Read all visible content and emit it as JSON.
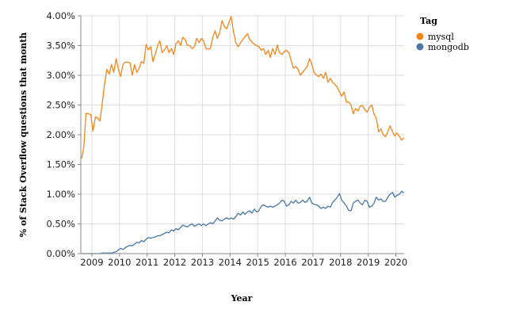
{
  "chart_data": {
    "type": "line",
    "xlabel": "Year",
    "ylabel": "% of Stack Overflow questions that month",
    "x_ticks": [
      "2009",
      "2010",
      "2011",
      "2012",
      "2013",
      "2014",
      "2015",
      "2016",
      "2017",
      "2018",
      "2019",
      "2020"
    ],
    "y_ticks": [
      "0.00%",
      "0.50%",
      "1.00%",
      "1.50%",
      "2.00%",
      "2.50%",
      "3.00%",
      "3.50%",
      "4.00%"
    ],
    "xlim": [
      2008.6,
      2020.3
    ],
    "ylim": [
      0,
      4.0
    ],
    "grid": true,
    "legend": {
      "title": "Tag",
      "position": "top-right"
    },
    "series": [
      {
        "name": "mysql",
        "color": "#f58518",
        "points": [
          [
            2008.63,
            1.6
          ],
          [
            2008.71,
            1.8
          ],
          [
            2008.79,
            2.36
          ],
          [
            2008.88,
            2.35
          ],
          [
            2008.96,
            2.34
          ],
          [
            2009.04,
            2.06
          ],
          [
            2009.13,
            2.3
          ],
          [
            2009.21,
            2.28
          ],
          [
            2009.29,
            2.23
          ],
          [
            2009.38,
            2.55
          ],
          [
            2009.46,
            2.86
          ],
          [
            2009.54,
            3.1
          ],
          [
            2009.63,
            3.02
          ],
          [
            2009.71,
            3.18
          ],
          [
            2009.79,
            3.05
          ],
          [
            2009.88,
            3.28
          ],
          [
            2009.96,
            3.1
          ],
          [
            2010.04,
            2.98
          ],
          [
            2010.13,
            3.19
          ],
          [
            2010.21,
            3.22
          ],
          [
            2010.29,
            3.22
          ],
          [
            2010.38,
            3.21
          ],
          [
            2010.46,
            3.0
          ],
          [
            2010.54,
            3.18
          ],
          [
            2010.63,
            3.05
          ],
          [
            2010.71,
            3.12
          ],
          [
            2010.79,
            3.23
          ],
          [
            2010.88,
            3.2
          ],
          [
            2010.96,
            3.52
          ],
          [
            2011.04,
            3.43
          ],
          [
            2011.13,
            3.48
          ],
          [
            2011.21,
            3.23
          ],
          [
            2011.29,
            3.35
          ],
          [
            2011.38,
            3.5
          ],
          [
            2011.46,
            3.58
          ],
          [
            2011.54,
            3.38
          ],
          [
            2011.63,
            3.43
          ],
          [
            2011.71,
            3.5
          ],
          [
            2011.79,
            3.38
          ],
          [
            2011.88,
            3.45
          ],
          [
            2011.96,
            3.35
          ],
          [
            2012.04,
            3.53
          ],
          [
            2012.13,
            3.58
          ],
          [
            2012.21,
            3.5
          ],
          [
            2012.29,
            3.64
          ],
          [
            2012.38,
            3.6
          ],
          [
            2012.46,
            3.5
          ],
          [
            2012.54,
            3.5
          ],
          [
            2012.63,
            3.45
          ],
          [
            2012.71,
            3.48
          ],
          [
            2012.79,
            3.62
          ],
          [
            2012.88,
            3.55
          ],
          [
            2012.96,
            3.62
          ],
          [
            2013.04,
            3.58
          ],
          [
            2013.13,
            3.45
          ],
          [
            2013.21,
            3.44
          ],
          [
            2013.29,
            3.45
          ],
          [
            2013.38,
            3.65
          ],
          [
            2013.46,
            3.75
          ],
          [
            2013.54,
            3.62
          ],
          [
            2013.63,
            3.73
          ],
          [
            2013.71,
            3.92
          ],
          [
            2013.79,
            3.82
          ],
          [
            2013.88,
            3.78
          ],
          [
            2013.96,
            3.89
          ],
          [
            2014.04,
            3.99
          ],
          [
            2014.13,
            3.72
          ],
          [
            2014.21,
            3.55
          ],
          [
            2014.29,
            3.48
          ],
          [
            2014.38,
            3.55
          ],
          [
            2014.46,
            3.6
          ],
          [
            2014.54,
            3.65
          ],
          [
            2014.63,
            3.7
          ],
          [
            2014.71,
            3.6
          ],
          [
            2014.79,
            3.56
          ],
          [
            2014.88,
            3.52
          ],
          [
            2014.96,
            3.5
          ],
          [
            2015.04,
            3.48
          ],
          [
            2015.13,
            3.42
          ],
          [
            2015.21,
            3.45
          ],
          [
            2015.29,
            3.35
          ],
          [
            2015.38,
            3.42
          ],
          [
            2015.46,
            3.3
          ],
          [
            2015.54,
            3.45
          ],
          [
            2015.63,
            3.35
          ],
          [
            2015.71,
            3.51
          ],
          [
            2015.79,
            3.38
          ],
          [
            2015.88,
            3.35
          ],
          [
            2015.96,
            3.4
          ],
          [
            2016.04,
            3.42
          ],
          [
            2016.13,
            3.38
          ],
          [
            2016.21,
            3.25
          ],
          [
            2016.29,
            3.12
          ],
          [
            2016.38,
            3.15
          ],
          [
            2016.46,
            3.1
          ],
          [
            2016.54,
            3.0
          ],
          [
            2016.63,
            3.05
          ],
          [
            2016.71,
            3.1
          ],
          [
            2016.79,
            3.15
          ],
          [
            2016.88,
            3.28
          ],
          [
            2016.96,
            3.18
          ],
          [
            2017.04,
            3.05
          ],
          [
            2017.13,
            3.0
          ],
          [
            2017.21,
            2.98
          ],
          [
            2017.29,
            3.02
          ],
          [
            2017.38,
            2.95
          ],
          [
            2017.46,
            3.05
          ],
          [
            2017.54,
            2.88
          ],
          [
            2017.63,
            2.95
          ],
          [
            2017.71,
            2.88
          ],
          [
            2017.79,
            2.85
          ],
          [
            2017.88,
            2.8
          ],
          [
            2017.96,
            2.72
          ],
          [
            2018.04,
            2.65
          ],
          [
            2018.13,
            2.72
          ],
          [
            2018.21,
            2.55
          ],
          [
            2018.29,
            2.55
          ],
          [
            2018.38,
            2.5
          ],
          [
            2018.46,
            2.35
          ],
          [
            2018.54,
            2.44
          ],
          [
            2018.63,
            2.4
          ],
          [
            2018.71,
            2.48
          ],
          [
            2018.79,
            2.49
          ],
          [
            2018.88,
            2.42
          ],
          [
            2018.96,
            2.38
          ],
          [
            2019.04,
            2.46
          ],
          [
            2019.13,
            2.5
          ],
          [
            2019.21,
            2.35
          ],
          [
            2019.29,
            2.28
          ],
          [
            2019.38,
            2.05
          ],
          [
            2019.46,
            2.1
          ],
          [
            2019.54,
            2.0
          ],
          [
            2019.63,
            1.97
          ],
          [
            2019.71,
            2.05
          ],
          [
            2019.79,
            2.15
          ],
          [
            2019.88,
            2.05
          ],
          [
            2019.96,
            1.98
          ],
          [
            2020.04,
            2.03
          ],
          [
            2020.13,
            1.97
          ],
          [
            2020.21,
            1.91
          ],
          [
            2020.29,
            1.95
          ]
        ]
      },
      {
        "name": "mongodb",
        "color": "#4c78a8",
        "points": [
          [
            2008.63,
            0.0
          ],
          [
            2008.71,
            0.0
          ],
          [
            2008.79,
            0.0
          ],
          [
            2008.88,
            0.0
          ],
          [
            2008.96,
            0.0
          ],
          [
            2009.04,
            0.0
          ],
          [
            2009.13,
            0.0
          ],
          [
            2009.21,
            0.0
          ],
          [
            2009.29,
            0.0
          ],
          [
            2009.38,
            0.01
          ],
          [
            2009.46,
            0.01
          ],
          [
            2009.54,
            0.01
          ],
          [
            2009.63,
            0.01
          ],
          [
            2009.71,
            0.01
          ],
          [
            2009.79,
            0.02
          ],
          [
            2009.88,
            0.03
          ],
          [
            2009.96,
            0.06
          ],
          [
            2010.04,
            0.09
          ],
          [
            2010.13,
            0.07
          ],
          [
            2010.21,
            0.1
          ],
          [
            2010.29,
            0.12
          ],
          [
            2010.38,
            0.14
          ],
          [
            2010.46,
            0.13
          ],
          [
            2010.54,
            0.16
          ],
          [
            2010.63,
            0.19
          ],
          [
            2010.71,
            0.18
          ],
          [
            2010.79,
            0.22
          ],
          [
            2010.88,
            0.2
          ],
          [
            2010.96,
            0.24
          ],
          [
            2011.04,
            0.27
          ],
          [
            2011.13,
            0.26
          ],
          [
            2011.21,
            0.27
          ],
          [
            2011.29,
            0.28
          ],
          [
            2011.38,
            0.3
          ],
          [
            2011.46,
            0.3
          ],
          [
            2011.54,
            0.32
          ],
          [
            2011.63,
            0.34
          ],
          [
            2011.71,
            0.36
          ],
          [
            2011.79,
            0.35
          ],
          [
            2011.88,
            0.4
          ],
          [
            2011.96,
            0.38
          ],
          [
            2012.04,
            0.42
          ],
          [
            2012.13,
            0.4
          ],
          [
            2012.21,
            0.44
          ],
          [
            2012.29,
            0.48
          ],
          [
            2012.38,
            0.46
          ],
          [
            2012.46,
            0.45
          ],
          [
            2012.54,
            0.48
          ],
          [
            2012.63,
            0.5
          ],
          [
            2012.71,
            0.46
          ],
          [
            2012.79,
            0.48
          ],
          [
            2012.88,
            0.5
          ],
          [
            2012.96,
            0.47
          ],
          [
            2013.04,
            0.5
          ],
          [
            2013.13,
            0.47
          ],
          [
            2013.21,
            0.5
          ],
          [
            2013.29,
            0.52
          ],
          [
            2013.38,
            0.5
          ],
          [
            2013.46,
            0.55
          ],
          [
            2013.54,
            0.6
          ],
          [
            2013.63,
            0.56
          ],
          [
            2013.71,
            0.55
          ],
          [
            2013.79,
            0.58
          ],
          [
            2013.88,
            0.6
          ],
          [
            2013.96,
            0.58
          ],
          [
            2014.04,
            0.6
          ],
          [
            2014.13,
            0.58
          ],
          [
            2014.21,
            0.62
          ],
          [
            2014.29,
            0.68
          ],
          [
            2014.38,
            0.65
          ],
          [
            2014.46,
            0.7
          ],
          [
            2014.54,
            0.66
          ],
          [
            2014.63,
            0.7
          ],
          [
            2014.71,
            0.72
          ],
          [
            2014.79,
            0.68
          ],
          [
            2014.88,
            0.75
          ],
          [
            2014.96,
            0.7
          ],
          [
            2015.04,
            0.72
          ],
          [
            2015.13,
            0.8
          ],
          [
            2015.21,
            0.82
          ],
          [
            2015.29,
            0.8
          ],
          [
            2015.38,
            0.78
          ],
          [
            2015.46,
            0.8
          ],
          [
            2015.54,
            0.78
          ],
          [
            2015.63,
            0.8
          ],
          [
            2015.71,
            0.82
          ],
          [
            2015.79,
            0.85
          ],
          [
            2015.88,
            0.9
          ],
          [
            2015.96,
            0.88
          ],
          [
            2016.04,
            0.8
          ],
          [
            2016.13,
            0.82
          ],
          [
            2016.21,
            0.88
          ],
          [
            2016.29,
            0.85
          ],
          [
            2016.38,
            0.9
          ],
          [
            2016.46,
            0.85
          ],
          [
            2016.54,
            0.86
          ],
          [
            2016.63,
            0.9
          ],
          [
            2016.71,
            0.86
          ],
          [
            2016.79,
            0.88
          ],
          [
            2016.88,
            0.95
          ],
          [
            2016.96,
            0.85
          ],
          [
            2017.04,
            0.83
          ],
          [
            2017.13,
            0.82
          ],
          [
            2017.21,
            0.8
          ],
          [
            2017.29,
            0.76
          ],
          [
            2017.38,
            0.78
          ],
          [
            2017.46,
            0.76
          ],
          [
            2017.54,
            0.8
          ],
          [
            2017.63,
            0.78
          ],
          [
            2017.71,
            0.86
          ],
          [
            2017.79,
            0.9
          ],
          [
            2017.88,
            0.95
          ],
          [
            2017.96,
            1.01
          ],
          [
            2018.04,
            0.9
          ],
          [
            2018.13,
            0.85
          ],
          [
            2018.21,
            0.8
          ],
          [
            2018.29,
            0.73
          ],
          [
            2018.38,
            0.72
          ],
          [
            2018.46,
            0.85
          ],
          [
            2018.54,
            0.88
          ],
          [
            2018.63,
            0.9
          ],
          [
            2018.71,
            0.85
          ],
          [
            2018.79,
            0.82
          ],
          [
            2018.88,
            0.9
          ],
          [
            2018.96,
            0.88
          ],
          [
            2019.04,
            0.78
          ],
          [
            2019.13,
            0.8
          ],
          [
            2019.21,
            0.85
          ],
          [
            2019.29,
            0.95
          ],
          [
            2019.38,
            0.9
          ],
          [
            2019.46,
            0.92
          ],
          [
            2019.54,
            0.88
          ],
          [
            2019.63,
            0.88
          ],
          [
            2019.71,
            0.95
          ],
          [
            2019.79,
            1.0
          ],
          [
            2019.88,
            1.03
          ],
          [
            2019.96,
            0.95
          ],
          [
            2020.04,
            0.98
          ],
          [
            2020.13,
            1.0
          ],
          [
            2020.21,
            1.05
          ],
          [
            2020.29,
            1.02
          ]
        ]
      }
    ]
  }
}
